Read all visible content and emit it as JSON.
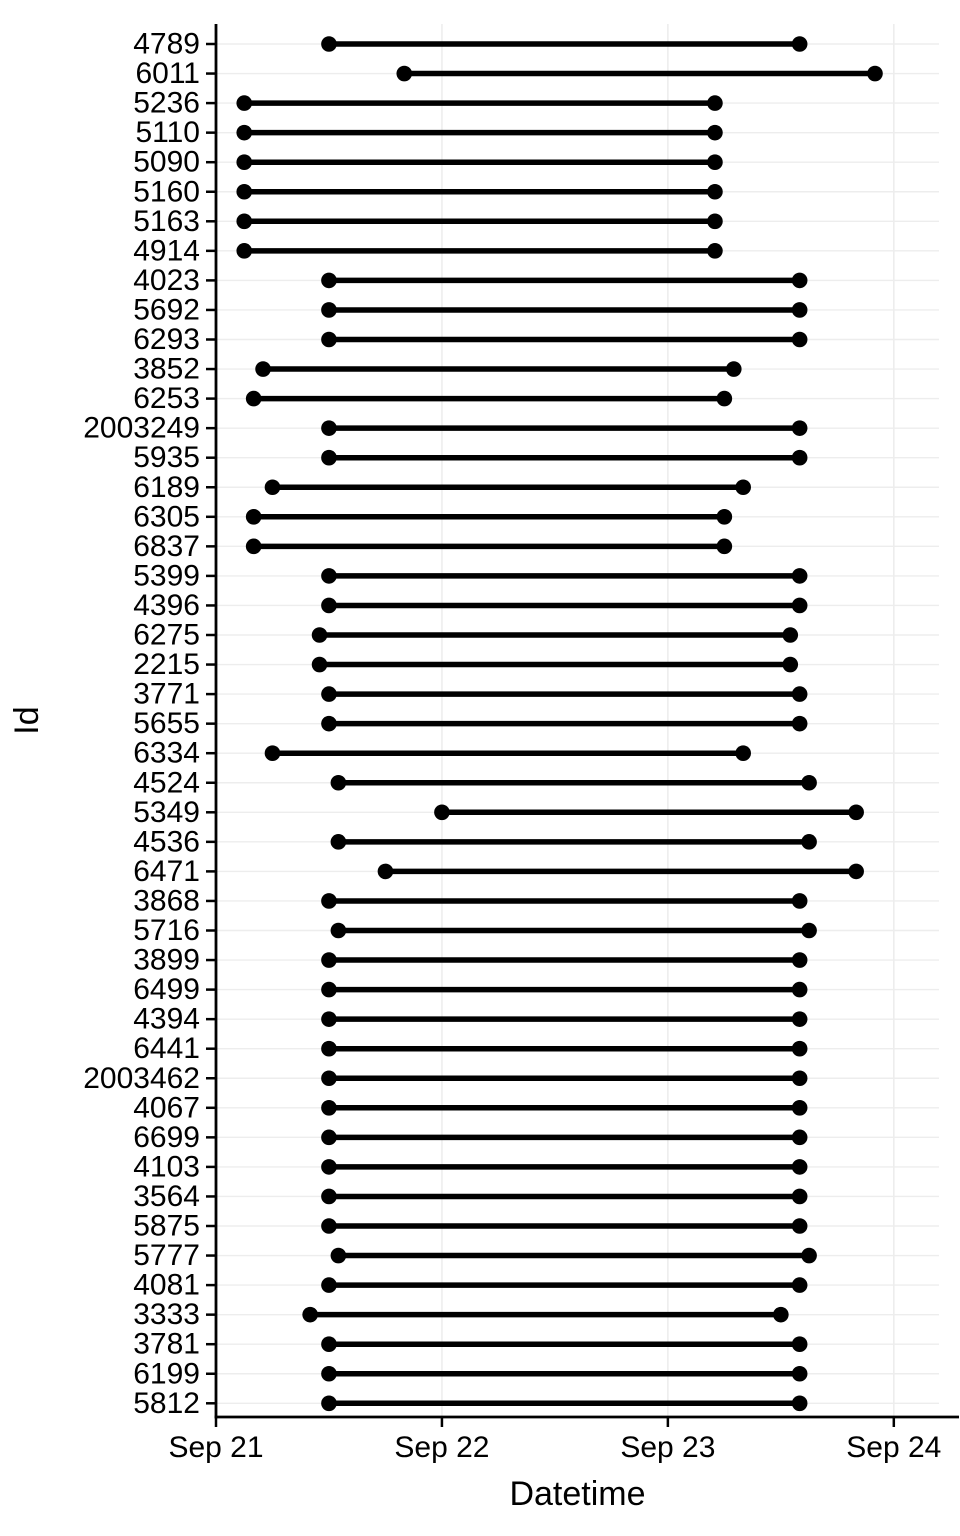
{
  "chart_data": {
    "type": "bar",
    "subtype": "dumbbell-range (Gantt-style segment plot, horizontal time ranges per Id)",
    "title": "",
    "xlabel": "Datetime",
    "ylabel": "Id",
    "grid": "on",
    "legend": "none",
    "x_axis": {
      "unit": "days since Sep 21 00:00",
      "lim_days": [
        0,
        3.2
      ],
      "ticks": [
        {
          "label": "Sep 21",
          "day": 0
        },
        {
          "label": "Sep 22",
          "day": 1
        },
        {
          "label": "Sep 23",
          "day": 2
        },
        {
          "label": "Sep 24",
          "day": 3
        }
      ]
    },
    "rows": [
      {
        "id": "4789",
        "start": "Sep 21 12:00",
        "end": "Sep 23 14:00",
        "start_day": 0.5,
        "end_day": 2.5833
      },
      {
        "id": "6011",
        "start": "Sep 21 20:00",
        "end": "Sep 23 22:00",
        "start_day": 0.8333,
        "end_day": 2.9167
      },
      {
        "id": "5236",
        "start": "Sep 21 03:00",
        "end": "Sep 23 05:00",
        "start_day": 0.125,
        "end_day": 2.2083
      },
      {
        "id": "5110",
        "start": "Sep 21 03:00",
        "end": "Sep 23 05:00",
        "start_day": 0.125,
        "end_day": 2.2083
      },
      {
        "id": "5090",
        "start": "Sep 21 03:00",
        "end": "Sep 23 05:00",
        "start_day": 0.125,
        "end_day": 2.2083
      },
      {
        "id": "5160",
        "start": "Sep 21 03:00",
        "end": "Sep 23 05:00",
        "start_day": 0.125,
        "end_day": 2.2083
      },
      {
        "id": "5163",
        "start": "Sep 21 03:00",
        "end": "Sep 23 05:00",
        "start_day": 0.125,
        "end_day": 2.2083
      },
      {
        "id": "4914",
        "start": "Sep 21 03:00",
        "end": "Sep 23 05:00",
        "start_day": 0.125,
        "end_day": 2.2083
      },
      {
        "id": "4023",
        "start": "Sep 21 12:00",
        "end": "Sep 23 14:00",
        "start_day": 0.5,
        "end_day": 2.5833
      },
      {
        "id": "5692",
        "start": "Sep 21 12:00",
        "end": "Sep 23 14:00",
        "start_day": 0.5,
        "end_day": 2.5833
      },
      {
        "id": "6293",
        "start": "Sep 21 12:00",
        "end": "Sep 23 14:00",
        "start_day": 0.5,
        "end_day": 2.5833
      },
      {
        "id": "3852",
        "start": "Sep 21 05:00",
        "end": "Sep 23 07:00",
        "start_day": 0.2083,
        "end_day": 2.2917
      },
      {
        "id": "6253",
        "start": "Sep 21 04:00",
        "end": "Sep 23 06:00",
        "start_day": 0.1667,
        "end_day": 2.25
      },
      {
        "id": "2003249",
        "start": "Sep 21 12:00",
        "end": "Sep 23 14:00",
        "start_day": 0.5,
        "end_day": 2.5833
      },
      {
        "id": "5935",
        "start": "Sep 21 12:00",
        "end": "Sep 23 14:00",
        "start_day": 0.5,
        "end_day": 2.5833
      },
      {
        "id": "6189",
        "start": "Sep 21 06:00",
        "end": "Sep 23 08:00",
        "start_day": 0.25,
        "end_day": 2.3333
      },
      {
        "id": "6305",
        "start": "Sep 21 04:00",
        "end": "Sep 23 06:00",
        "start_day": 0.1667,
        "end_day": 2.25
      },
      {
        "id": "6837",
        "start": "Sep 21 04:00",
        "end": "Sep 23 06:00",
        "start_day": 0.1667,
        "end_day": 2.25
      },
      {
        "id": "5399",
        "start": "Sep 21 12:00",
        "end": "Sep 23 14:00",
        "start_day": 0.5,
        "end_day": 2.5833
      },
      {
        "id": "4396",
        "start": "Sep 21 12:00",
        "end": "Sep 23 14:00",
        "start_day": 0.5,
        "end_day": 2.5833
      },
      {
        "id": "6275",
        "start": "Sep 21 11:00",
        "end": "Sep 23 13:00",
        "start_day": 0.4583,
        "end_day": 2.5417
      },
      {
        "id": "2215",
        "start": "Sep 21 11:00",
        "end": "Sep 23 13:00",
        "start_day": 0.4583,
        "end_day": 2.5417
      },
      {
        "id": "3771",
        "start": "Sep 21 12:00",
        "end": "Sep 23 14:00",
        "start_day": 0.5,
        "end_day": 2.5833
      },
      {
        "id": "5655",
        "start": "Sep 21 12:00",
        "end": "Sep 23 14:00",
        "start_day": 0.5,
        "end_day": 2.5833
      },
      {
        "id": "6334",
        "start": "Sep 21 06:00",
        "end": "Sep 23 08:00",
        "start_day": 0.25,
        "end_day": 2.3333
      },
      {
        "id": "4524",
        "start": "Sep 21 13:00",
        "end": "Sep 23 15:00",
        "start_day": 0.5417,
        "end_day": 2.625
      },
      {
        "id": "5349",
        "start": "Sep 22 00:00",
        "end": "Sep 23 20:00",
        "start_day": 1.0,
        "end_day": 2.8333
      },
      {
        "id": "4536",
        "start": "Sep 21 13:00",
        "end": "Sep 23 15:00",
        "start_day": 0.5417,
        "end_day": 2.625
      },
      {
        "id": "6471",
        "start": "Sep 21 18:00",
        "end": "Sep 23 20:00",
        "start_day": 0.75,
        "end_day": 2.8333
      },
      {
        "id": "3868",
        "start": "Sep 21 12:00",
        "end": "Sep 23 14:00",
        "start_day": 0.5,
        "end_day": 2.5833
      },
      {
        "id": "5716",
        "start": "Sep 21 13:00",
        "end": "Sep 23 15:00",
        "start_day": 0.5417,
        "end_day": 2.625
      },
      {
        "id": "3899",
        "start": "Sep 21 12:00",
        "end": "Sep 23 14:00",
        "start_day": 0.5,
        "end_day": 2.5833
      },
      {
        "id": "6499",
        "start": "Sep 21 12:00",
        "end": "Sep 23 14:00",
        "start_day": 0.5,
        "end_day": 2.5833
      },
      {
        "id": "4394",
        "start": "Sep 21 12:00",
        "end": "Sep 23 14:00",
        "start_day": 0.5,
        "end_day": 2.5833
      },
      {
        "id": "6441",
        "start": "Sep 21 12:00",
        "end": "Sep 23 14:00",
        "start_day": 0.5,
        "end_day": 2.5833
      },
      {
        "id": "2003462",
        "start": "Sep 21 12:00",
        "end": "Sep 23 14:00",
        "start_day": 0.5,
        "end_day": 2.5833
      },
      {
        "id": "4067",
        "start": "Sep 21 12:00",
        "end": "Sep 23 14:00",
        "start_day": 0.5,
        "end_day": 2.5833
      },
      {
        "id": "6699",
        "start": "Sep 21 12:00",
        "end": "Sep 23 14:00",
        "start_day": 0.5,
        "end_day": 2.5833
      },
      {
        "id": "4103",
        "start": "Sep 21 12:00",
        "end": "Sep 23 14:00",
        "start_day": 0.5,
        "end_day": 2.5833
      },
      {
        "id": "3564",
        "start": "Sep 21 12:00",
        "end": "Sep 23 14:00",
        "start_day": 0.5,
        "end_day": 2.5833
      },
      {
        "id": "5875",
        "start": "Sep 21 12:00",
        "end": "Sep 23 14:00",
        "start_day": 0.5,
        "end_day": 2.5833
      },
      {
        "id": "5777",
        "start": "Sep 21 13:00",
        "end": "Sep 23 15:00",
        "start_day": 0.5417,
        "end_day": 2.625
      },
      {
        "id": "4081",
        "start": "Sep 21 12:00",
        "end": "Sep 23 14:00",
        "start_day": 0.5,
        "end_day": 2.5833
      },
      {
        "id": "3333",
        "start": "Sep 21 10:00",
        "end": "Sep 23 12:00",
        "start_day": 0.4167,
        "end_day": 2.5
      },
      {
        "id": "3781",
        "start": "Sep 21 12:00",
        "end": "Sep 23 14:00",
        "start_day": 0.5,
        "end_day": 2.5833
      },
      {
        "id": "6199",
        "start": "Sep 21 12:00",
        "end": "Sep 23 14:00",
        "start_day": 0.5,
        "end_day": 2.5833
      },
      {
        "id": "5812",
        "start": "Sep 21 12:00",
        "end": "Sep 23 14:00",
        "start_day": 0.5,
        "end_day": 2.5833
      }
    ],
    "colors": {
      "segment": "#000000",
      "dot": "#000000",
      "grid": "#ededed",
      "axis": "#000000",
      "text": "#000000",
      "background": "#ffffff"
    }
  }
}
